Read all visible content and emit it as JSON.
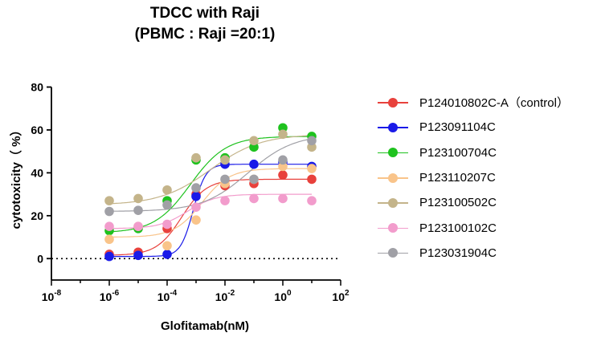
{
  "chart_data": {
    "type": "scatter",
    "title": "TDCC with Raji",
    "subtitle": "(PBMC : Raji =20:1)",
    "xlabel": "Glofitamab(nM)",
    "ylabel": "cytotoxicity（ %）",
    "xscale": "log10",
    "xlim_exp": [
      -8,
      2
    ],
    "x_tick_labels": [
      {
        "exp": -8,
        "base": "10",
        "sup": "-8"
      },
      {
        "exp": -6,
        "base": "10",
        "sup": "-6"
      },
      {
        "exp": -4,
        "base": "10",
        "sup": "-4"
      },
      {
        "exp": -2,
        "base": "10",
        "sup": "-2"
      },
      {
        "exp": 0,
        "base": "10",
        "sup": "0"
      },
      {
        "exp": 2,
        "base": "10",
        "sup": "2"
      }
    ],
    "ylim": [
      -10,
      80
    ],
    "y_ticks": [
      0,
      20,
      40,
      60,
      80
    ],
    "y_tick_labels": [
      "0",
      "20",
      "40",
      "60",
      "80"
    ],
    "reference_line_y": 0,
    "legend_position": "right",
    "x_exponents": [
      -6,
      -5,
      -4,
      -3,
      -2,
      -1,
      0,
      1
    ],
    "series": [
      {
        "name": "P124010802C-A（control）",
        "color": "#e8413c",
        "values": [
          2,
          3,
          14,
          30,
          34,
          35,
          39,
          37
        ],
        "fit": {
          "bottom": 1.5,
          "top": 37,
          "logEC50": -3.5,
          "hill": 1.0
        }
      },
      {
        "name": "P123091104C",
        "color": "#1a1ae8",
        "values": [
          1,
          1.5,
          2,
          29,
          44,
          44,
          45,
          43
        ],
        "fit": {
          "bottom": 1,
          "top": 44,
          "logEC50": -3.1,
          "hill": 2.0
        }
      },
      {
        "name": "P123100704C",
        "color": "#1ec21e",
        "values": [
          13,
          14,
          27,
          46,
          47,
          52,
          61,
          57
        ],
        "fit": {
          "bottom": 12,
          "top": 57,
          "logEC50": -3.2,
          "hill": 0.7
        }
      },
      {
        "name": "P123110207C",
        "color": "#f9c48a",
        "values": [
          9,
          15,
          6,
          18,
          35,
          37,
          43,
          42
        ],
        "fit": {
          "bottom": 10,
          "top": 42,
          "logEC50": -2.8,
          "hill": 0.9
        }
      },
      {
        "name": "P123100502C",
        "color": "#c4b48a",
        "values": [
          27,
          28,
          32,
          47,
          46,
          55,
          58,
          52
        ],
        "fit": {
          "bottom": 25,
          "top": 58,
          "logEC50": -2.5,
          "hill": 0.5
        }
      },
      {
        "name": "P123100102C",
        "color": "#f29ccc",
        "values": [
          15,
          15,
          16,
          24,
          27,
          28,
          28,
          27
        ],
        "fit": {
          "bottom": 14,
          "top": 30,
          "logEC50": -3.3,
          "hill": 0.9
        }
      },
      {
        "name": "P123031904C",
        "color": "#a0a0a6",
        "values": [
          22,
          22.5,
          25,
          33,
          37,
          37,
          46,
          55
        ],
        "fit": {
          "bottom": 22,
          "top": 58,
          "logEC50": -1.2,
          "hill": 0.55
        }
      }
    ]
  }
}
